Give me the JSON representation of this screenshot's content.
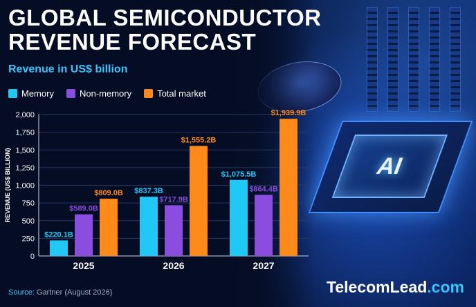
{
  "title_line1": "GLOBAL SEMICONDUCTOR",
  "title_line2": "REVENUE FORECAST",
  "subtitle": "Revenue in US$ billion",
  "chip_label": "AI",
  "source_label": "Source:",
  "source_text": "Gartner (August 2026)",
  "brand_name": "TelecomLead",
  "brand_suffix": ".com",
  "colors": {
    "memory": "#1fc8f5",
    "non_memory": "#8a4de0",
    "total": "#ff8a1a",
    "accent": "#34c6ff"
  },
  "chart_data": {
    "type": "bar",
    "ylabel": "REVENUE (US$ BILLION)",
    "ylim": [
      0,
      2000
    ],
    "yticks": [
      "0",
      "250",
      "500",
      "750",
      "1,000",
      "1,250",
      "1,500",
      "1,750",
      "2,000"
    ],
    "ytick_values": [
      0,
      250,
      500,
      750,
      1000,
      1250,
      1500,
      1750,
      2000
    ],
    "grid": true,
    "legend_position": "top-left",
    "categories": [
      "2025",
      "2026",
      "2027"
    ],
    "series": [
      {
        "name": "Memory",
        "values": [
          220.1,
          837.3,
          1075.5
        ],
        "labels": [
          "$220.1B",
          "$837.3B",
          "$1,075.5B"
        ],
        "color": "#1fc8f5"
      },
      {
        "name": "Non-memory",
        "values": [
          589.0,
          717.9,
          864.4
        ],
        "labels": [
          "$589.0B",
          "$717.9B",
          "$864.4B"
        ],
        "color": "#8a4de0"
      },
      {
        "name": "Total market",
        "values": [
          809.0,
          1555.2,
          1939.9
        ],
        "labels": [
          "$809.0B",
          "$1,555.2B",
          "$1,939.9B"
        ],
        "color": "#ff8a1a"
      }
    ]
  }
}
